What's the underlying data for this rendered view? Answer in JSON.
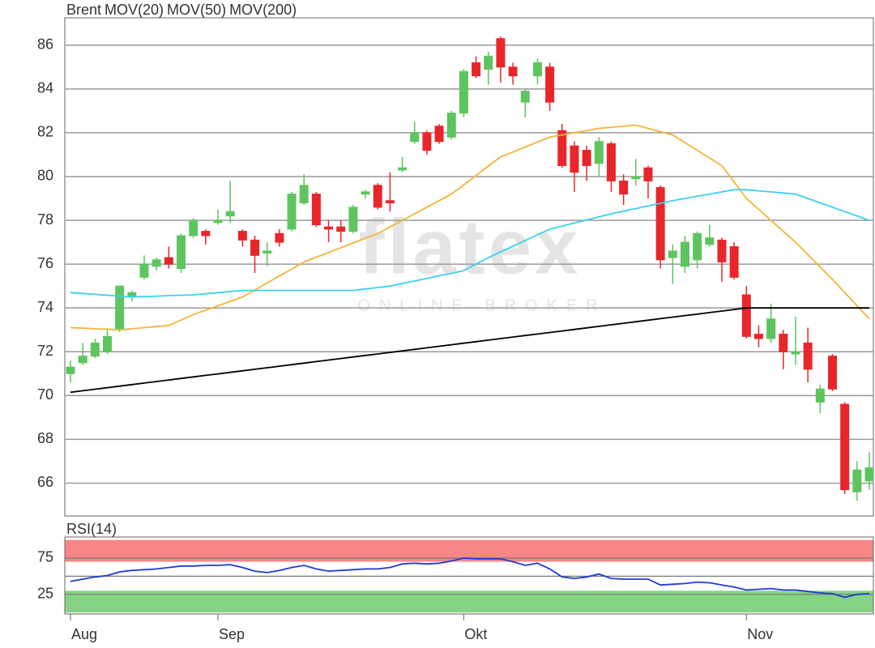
{
  "watermark": {
    "logo": "flatex",
    "tagline": "ONLINE BROKER"
  },
  "chart_data": [
    {
      "type": "candlestick",
      "name": "Brent",
      "name_color": "#f2603c",
      "up_color": "#5ec45e",
      "down_color": "#e8262a",
      "open": [
        71.0,
        71.5,
        71.8,
        72.0,
        73.0,
        74.5,
        75.4,
        75.9,
        76.3,
        75.8,
        77.3,
        77.5,
        77.9,
        78.2,
        77.5,
        77.1,
        76.5,
        77.4,
        77.6,
        78.8,
        79.2,
        77.7,
        77.7,
        77.5,
        79.2,
        79.6,
        78.9,
        80.3,
        81.6,
        82.0,
        82.3,
        81.8,
        82.9,
        85.2,
        84.9,
        86.3,
        85.0,
        83.4,
        84.6,
        85.0,
        82.1,
        81.4,
        81.2,
        80.6,
        81.5,
        79.8,
        79.9,
        80.4,
        79.5,
        76.3,
        75.9,
        76.2,
        76.9,
        77.1,
        76.8,
        74.6,
        72.8,
        72.6,
        72.8,
        71.9,
        72.4,
        69.7,
        71.8,
        69.6,
        65.6,
        66.1
      ],
      "high": [
        71.6,
        72.4,
        72.6,
        73.0,
        75.0,
        74.8,
        76.4,
        76.3,
        76.8,
        77.4,
        78.1,
        77.6,
        78.5,
        79.8,
        77.6,
        77.3,
        77.0,
        77.6,
        79.3,
        80.1,
        79.3,
        78.0,
        78.0,
        78.7,
        79.4,
        79.7,
        80.2,
        80.9,
        82.5,
        82.1,
        82.4,
        83.0,
        84.9,
        85.5,
        85.7,
        86.4,
        85.2,
        84.0,
        85.4,
        85.2,
        82.4,
        81.6,
        81.4,
        81.8,
        81.6,
        80.1,
        80.8,
        80.5,
        79.6,
        76.9,
        77.3,
        77.5,
        77.8,
        77.2,
        77.0,
        75.0,
        73.2,
        74.2,
        73.0,
        73.6,
        73.1,
        70.5,
        71.9,
        69.7,
        67.0,
        67.4
      ],
      "low": [
        70.6,
        71.4,
        71.7,
        71.9,
        72.9,
        74.3,
        75.3,
        75.7,
        75.8,
        75.6,
        77.2,
        76.9,
        77.8,
        77.9,
        76.8,
        75.6,
        75.9,
        76.8,
        77.5,
        78.7,
        77.7,
        77.0,
        77.0,
        77.4,
        79.0,
        78.5,
        78.4,
        80.2,
        81.5,
        81.0,
        81.5,
        81.7,
        82.7,
        84.5,
        84.2,
        84.3,
        84.2,
        82.7,
        84.2,
        83.0,
        80.4,
        79.3,
        79.8,
        80.0,
        79.3,
        78.7,
        79.6,
        79.0,
        75.8,
        75.1,
        75.6,
        75.8,
        76.8,
        75.2,
        75.3,
        72.6,
        72.2,
        72.4,
        71.2,
        71.4,
        70.6,
        69.2,
        70.2,
        65.5,
        65.2,
        65.7
      ],
      "close": [
        71.3,
        71.8,
        72.4,
        72.7,
        75.0,
        74.7,
        76.0,
        76.2,
        76.0,
        77.3,
        78.0,
        77.3,
        78.0,
        78.4,
        77.1,
        76.4,
        76.6,
        77.0,
        79.2,
        79.6,
        77.8,
        77.6,
        77.5,
        78.6,
        79.3,
        78.6,
        78.8,
        80.4,
        82.0,
        81.2,
        81.6,
        82.9,
        84.8,
        84.6,
        85.5,
        85.0,
        84.6,
        83.9,
        85.2,
        83.4,
        80.5,
        80.2,
        80.5,
        81.6,
        79.8,
        79.2,
        80.0,
        79.8,
        76.2,
        76.6,
        77.0,
        77.4,
        77.2,
        76.1,
        75.4,
        72.7,
        72.6,
        73.5,
        72.0,
        72.0,
        71.2,
        70.3,
        70.3,
        65.7,
        66.6,
        66.7
      ],
      "lines": [
        {
          "name": "MOV(20)",
          "color": "#f5b335",
          "values": [
            73.1,
            73.08,
            73.05,
            73.03,
            73.0,
            73.05,
            73.1,
            73.15,
            73.2,
            73.45,
            73.7,
            73.9,
            74.1,
            74.3,
            74.5,
            74.82,
            75.14,
            75.46,
            75.78,
            76.1,
            76.32,
            76.53,
            76.75,
            76.97,
            77.18,
            77.4,
            77.7,
            78.0,
            78.3,
            78.6,
            78.9,
            79.2,
            79.62,
            80.05,
            80.48,
            80.9,
            81.12,
            81.35,
            81.58,
            81.8,
            81.9,
            82.0,
            82.1,
            82.2,
            82.25,
            82.3,
            82.35,
            82.2,
            82.05,
            81.9,
            81.55,
            81.2,
            80.85,
            80.5,
            79.75,
            79.0,
            78.5,
            78.0,
            77.5,
            77.0,
            76.43,
            75.87,
            75.3,
            74.7,
            74.1,
            73.5
          ]
        },
        {
          "name": "MOV(50)",
          "color": "#38d1f0",
          "values": [
            74.7,
            74.66,
            74.62,
            74.58,
            74.54,
            74.5,
            74.52,
            74.54,
            74.56,
            74.58,
            74.6,
            74.65,
            74.7,
            74.75,
            74.8,
            74.8,
            74.8,
            74.8,
            74.8,
            74.8,
            74.8,
            74.8,
            74.8,
            74.8,
            74.87,
            74.93,
            75.0,
            75.12,
            75.23,
            75.35,
            75.47,
            75.58,
            75.7,
            76.0,
            76.3,
            76.56,
            76.82,
            77.08,
            77.34,
            77.6,
            77.74,
            77.88,
            78.02,
            78.16,
            78.3,
            78.42,
            78.54,
            78.66,
            78.78,
            78.9,
            79.0,
            79.1,
            79.2,
            79.3,
            79.4,
            79.4,
            79.35,
            79.3,
            79.25,
            79.2,
            79.0,
            78.8,
            78.6,
            78.4,
            78.2,
            78.0
          ]
        },
        {
          "name": "MOV(200)",
          "color": "#000000",
          "values": [
            70.15,
            70.22,
            70.29,
            70.36,
            70.43,
            70.5,
            70.57,
            70.64,
            70.71,
            70.78,
            70.85,
            70.92,
            70.99,
            71.06,
            71.13,
            71.2,
            71.27,
            71.34,
            71.41,
            71.48,
            71.55,
            71.62,
            71.69,
            71.76,
            71.83,
            71.9,
            71.97,
            72.04,
            72.11,
            72.18,
            72.25,
            72.32,
            72.39,
            72.46,
            72.53,
            72.6,
            72.67,
            72.74,
            72.81,
            72.88,
            72.95,
            73.02,
            73.09,
            73.16,
            73.23,
            73.3,
            73.37,
            73.44,
            73.51,
            73.58,
            73.65,
            73.72,
            73.79,
            73.86,
            73.93,
            74.0,
            74.0,
            74.0,
            74.0,
            74.0,
            74.0,
            74.0,
            74.0,
            74.0,
            74.0,
            74.0
          ]
        }
      ],
      "ylim": [
        64.5,
        87.25
      ],
      "yticks": [
        66,
        68,
        70,
        72,
        74,
        76,
        78,
        80,
        82,
        84,
        86
      ],
      "grid": true
    },
    {
      "type": "line",
      "categories": [
        "Aug",
        null,
        null,
        null,
        null,
        null,
        null,
        null,
        null,
        null,
        null,
        null,
        "Sep",
        null,
        null,
        null,
        null,
        null,
        null,
        null,
        null,
        null,
        null,
        null,
        null,
        null,
        null,
        null,
        null,
        null,
        null,
        null,
        "Okt",
        null,
        null,
        null,
        null,
        null,
        null,
        null,
        null,
        null,
        null,
        null,
        null,
        null,
        null,
        null,
        null,
        null,
        null,
        null,
        null,
        null,
        null,
        "Nov",
        null,
        null,
        null,
        null,
        null,
        null,
        null,
        null,
        null,
        null
      ],
      "series": [
        {
          "name": "RSI(14)",
          "color": "#1e3ad8",
          "values": [
            43,
            46,
            49,
            51,
            56,
            58,
            59,
            60,
            62,
            64,
            64,
            65,
            65,
            66,
            62,
            57,
            55,
            58,
            62,
            65,
            60,
            57,
            58,
            59,
            60,
            60,
            62,
            67,
            68,
            67,
            68,
            71,
            75,
            74,
            74,
            74,
            70,
            65,
            68,
            60,
            49,
            47,
            49,
            53,
            47,
            46,
            46,
            46,
            38,
            39,
            40,
            42,
            41,
            38,
            35,
            31,
            32,
            33,
            31,
            31,
            29,
            27,
            26,
            21,
            25,
            26
          ]
        }
      ],
      "bands": [
        {
          "range": [
            70,
            100
          ],
          "color": "#f78787"
        },
        {
          "range": [
            0,
            30
          ],
          "color": "#86d386"
        }
      ],
      "gridlines": [
        25,
        50,
        75
      ],
      "ylim": [
        -2,
        104
      ],
      "yticks": [
        25,
        75
      ]
    }
  ]
}
